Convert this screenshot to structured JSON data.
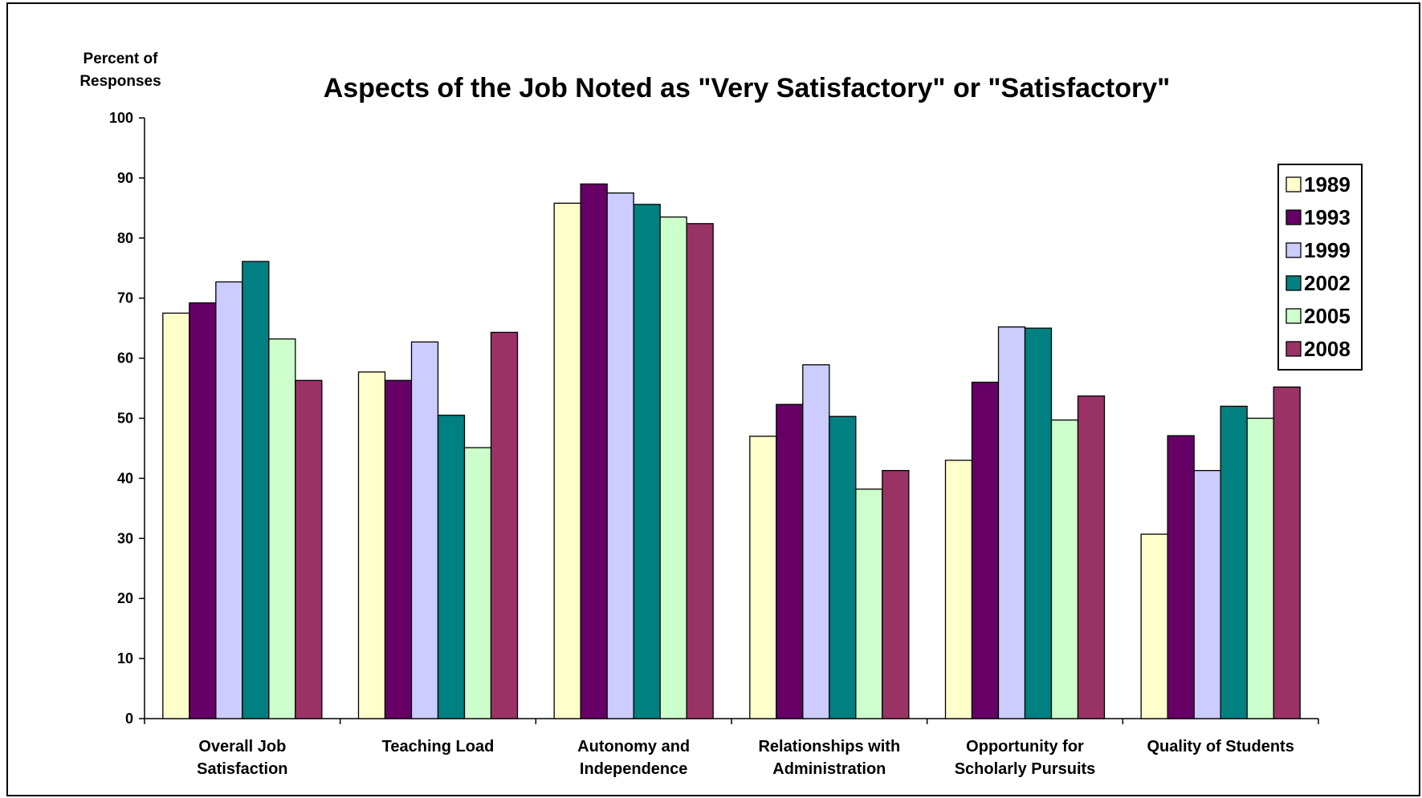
{
  "chart_data": {
    "type": "bar",
    "title": "Aspects of the Job Noted as \"Very Satisfactory\" or \"Satisfactory\"",
    "ylabel_lines": [
      "Percent of",
      "Responses"
    ],
    "xlabel": "",
    "ylim": [
      0,
      100
    ],
    "yticks": [
      "0",
      "10",
      "20",
      "30",
      "40",
      "50",
      "60",
      "70",
      "80",
      "90",
      "100"
    ],
    "legend_position": "right",
    "grid": false,
    "categories": [
      [
        "Overall Job",
        "Satisfaction"
      ],
      [
        "Teaching Load"
      ],
      [
        "Autonomy and",
        "Independence"
      ],
      [
        "Relationships with",
        "Administration"
      ],
      [
        "Opportunity for",
        "Scholarly Pursuits"
      ],
      [
        "Quality of Students"
      ]
    ],
    "series": [
      {
        "name": "1989",
        "color": "#FFFFCC",
        "values": [
          67.5,
          57.7,
          85.8,
          47.0,
          43.0,
          30.7
        ]
      },
      {
        "name": "1993",
        "color": "#660066",
        "values": [
          69.2,
          56.3,
          89.0,
          52.3,
          56.0,
          47.1
        ]
      },
      {
        "name": "1999",
        "color": "#CCCCFF",
        "values": [
          72.7,
          62.7,
          87.5,
          58.9,
          65.2,
          41.3
        ]
      },
      {
        "name": "2002",
        "color": "#008080",
        "values": [
          76.1,
          50.5,
          85.6,
          50.3,
          65.0,
          52.0
        ]
      },
      {
        "name": "2005",
        "color": "#CCFFCC",
        "values": [
          63.2,
          45.1,
          83.5,
          38.2,
          49.7,
          50.0
        ]
      },
      {
        "name": "2008",
        "color": "#993366",
        "values": [
          56.3,
          64.3,
          82.4,
          41.3,
          53.7,
          55.2
        ]
      }
    ]
  }
}
